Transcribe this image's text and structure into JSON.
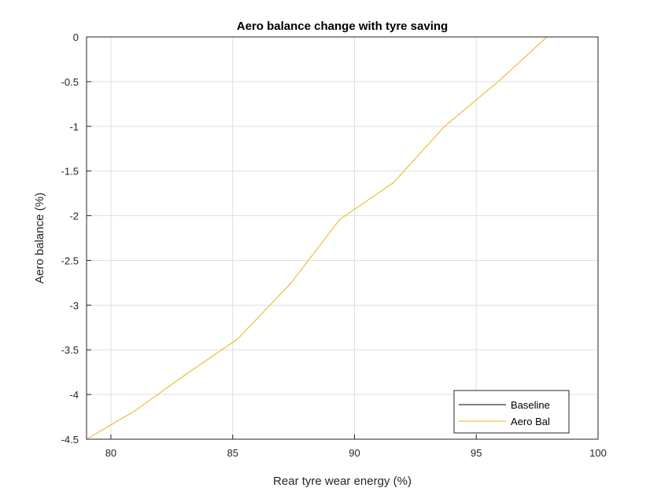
{
  "chart_data": {
    "type": "line",
    "title": "Aero balance change with tyre saving",
    "xlabel": "Rear tyre wear energy (%)",
    "ylabel": "Aero balance (%)",
    "xlim": [
      79,
      100
    ],
    "ylim": [
      -4.5,
      0
    ],
    "x_ticks": [
      80,
      85,
      90,
      95,
      100
    ],
    "y_ticks": [
      0,
      -0.5,
      -1,
      -1.5,
      -2,
      -2.5,
      -3,
      -3.5,
      -4,
      -4.5
    ],
    "x_tick_labels": [
      "80",
      "85",
      "90",
      "95",
      "100"
    ],
    "y_tick_labels": [
      "0",
      "-0.5",
      "-1",
      "-1.5",
      "-2",
      "-2.5",
      "-3",
      "-3.5",
      "-4",
      "-4.5"
    ],
    "grid": true,
    "legend_position": "bottom-right",
    "series": [
      {
        "name": "Baseline",
        "color": "#000000",
        "x": [
          79,
          100
        ],
        "y": [
          0,
          0
        ]
      },
      {
        "name": "Aero Bal",
        "color": "#EDB120",
        "x": [
          79,
          81,
          83.1,
          85.2,
          87.4,
          89.4,
          91.6,
          93.7,
          95.9,
          97.9,
          100
        ],
        "y": [
          -4.5,
          -4.18,
          -3.77,
          -3.38,
          -2.75,
          -2.04,
          -1.63,
          -1.0,
          -0.5,
          0,
          0
        ]
      }
    ]
  }
}
